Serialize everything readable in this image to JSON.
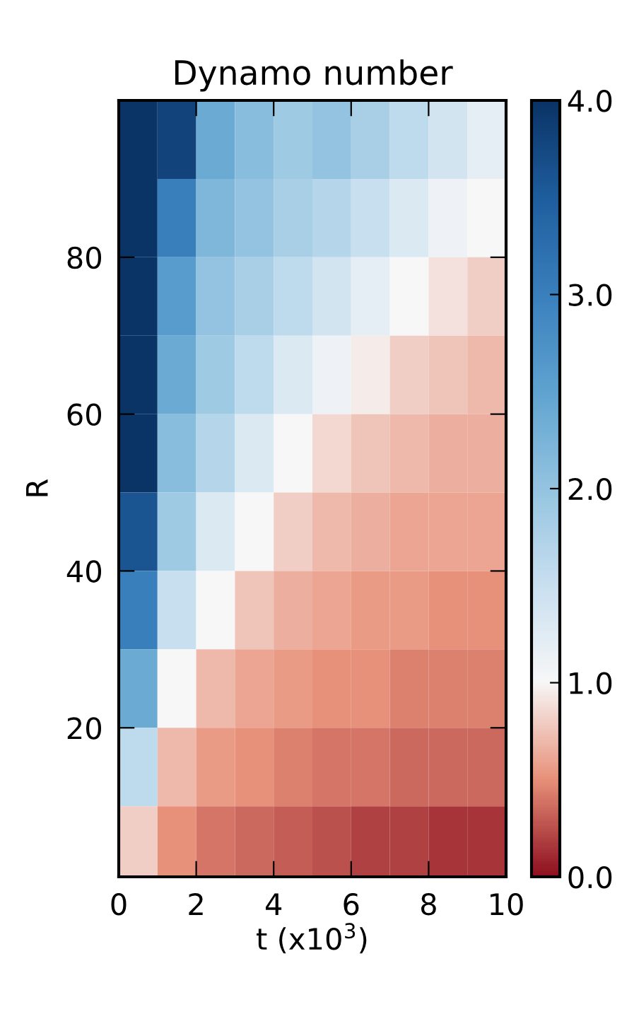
{
  "chart_data": {
    "type": "heatmap",
    "title": "Dynamo number",
    "xlabel": "t (x10$^{3}$)",
    "ylabel": "R",
    "x": [
      0.5,
      1.5,
      2.5,
      3.5,
      4.5,
      5.5,
      6.5,
      7.5,
      8.5,
      9.5
    ],
    "y": [
      95,
      85,
      75,
      65,
      55,
      45,
      35,
      25,
      15,
      5
    ],
    "cells": [
      [
        4.0,
        3.8,
        2.4,
        2.1,
        1.9,
        2.0,
        1.8,
        1.6,
        1.4,
        1.2
      ],
      [
        4.0,
        3.0,
        2.2,
        2.0,
        1.8,
        1.7,
        1.5,
        1.3,
        1.1,
        1.0
      ],
      [
        4.0,
        2.6,
        2.0,
        1.8,
        1.6,
        1.4,
        1.2,
        1.0,
        0.9,
        0.8
      ],
      [
        4.0,
        2.4,
        1.9,
        1.6,
        1.3,
        1.1,
        0.95,
        0.8,
        0.75,
        0.7
      ],
      [
        4.0,
        2.1,
        1.7,
        1.3,
        1.0,
        0.85,
        0.75,
        0.7,
        0.65,
        0.65
      ],
      [
        3.6,
        1.9,
        1.3,
        1.0,
        0.8,
        0.7,
        0.65,
        0.6,
        0.6,
        0.6
      ],
      [
        3.0,
        1.5,
        1.0,
        0.75,
        0.65,
        0.6,
        0.55,
        0.55,
        0.5,
        0.5
      ],
      [
        2.4,
        1.0,
        0.7,
        0.6,
        0.55,
        0.5,
        0.5,
        0.45,
        0.45,
        0.45
      ],
      [
        1.6,
        0.7,
        0.55,
        0.5,
        0.45,
        0.4,
        0.4,
        0.35,
        0.35,
        0.35
      ],
      [
        0.8,
        0.5,
        0.4,
        0.35,
        0.3,
        0.25,
        0.2,
        0.2,
        0.15,
        0.15
      ]
    ],
    "colors": [
      "#8e1020",
      "#e8917a",
      "#f7f7f7",
      "#c9dff0",
      "#94c4e0",
      "#5fa3d0",
      "#3a80bd",
      "#1f5e9e",
      "#0a3366"
    ],
    "xlim": [
      0,
      10
    ],
    "xticks": [
      0,
      2,
      4,
      6,
      8,
      10
    ],
    "ylim": [
      1,
      100
    ],
    "yticks": [
      20,
      40,
      60,
      80
    ],
    "clim": [
      0,
      4
    ],
    "cticks": [
      {
        "value": 0,
        "label": "0.0"
      },
      {
        "value": 1,
        "label": "1.0"
      },
      {
        "value": 2,
        "label": "2.0"
      },
      {
        "value": 3,
        "label": "3.0"
      },
      {
        "value": 4,
        "label": "4.0"
      }
    ]
  }
}
